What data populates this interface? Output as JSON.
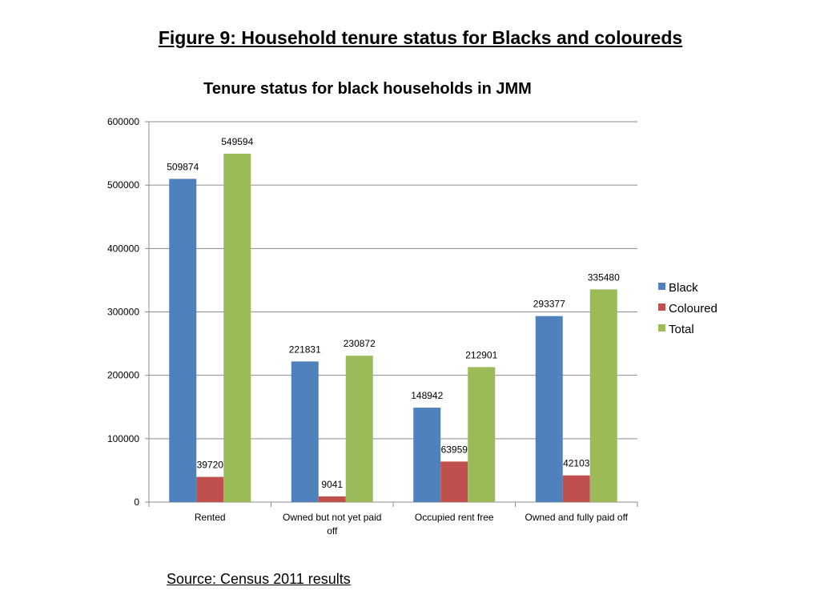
{
  "figure_title": "Figure 9: Household tenure status for Blacks and coloureds",
  "source_text": "Source: Census 2011 results",
  "chart_data": {
    "type": "bar",
    "title": "Tenure status for black households  in JMM",
    "xlabel": "",
    "ylabel": "",
    "ylim": [
      0,
      600000
    ],
    "yticks": [
      0,
      100000,
      200000,
      300000,
      400000,
      500000,
      600000
    ],
    "grid": true,
    "legend_position": "right",
    "categories": [
      "Rented",
      "Owned but not yet paid off",
      "Occupied rent free",
      "Owned and fully paid off"
    ],
    "category_lines": [
      [
        "Rented"
      ],
      [
        "Owned but not yet paid",
        "off"
      ],
      [
        "Occupied rent free"
      ],
      [
        "Owned and fully paid off"
      ]
    ],
    "series": [
      {
        "name": "Black",
        "color": "#4F81BD",
        "values": [
          509874,
          221831,
          148942,
          293377
        ]
      },
      {
        "name": "Coloured",
        "color": "#C0504D",
        "values": [
          39720,
          9041,
          63959,
          42103
        ]
      },
      {
        "name": "Total",
        "color": "#9BBB59",
        "values": [
          549594,
          230872,
          212901,
          335480
        ]
      }
    ]
  }
}
